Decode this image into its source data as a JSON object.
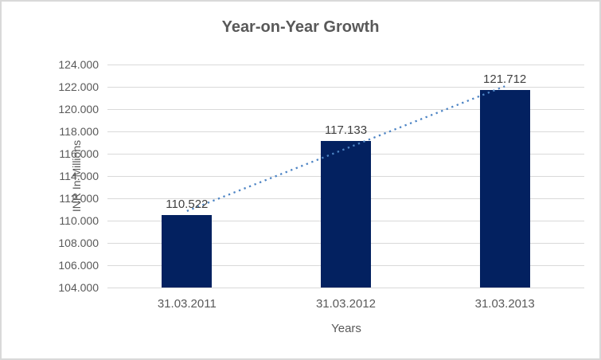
{
  "chart_data": {
    "type": "bar",
    "title": "Year-on-Year Growth",
    "xlabel": "Years",
    "ylabel": "INR In Millions",
    "categories": [
      "31.03.2011",
      "31.03.2012",
      "31.03.2013"
    ],
    "values": [
      110.522,
      117.133,
      121.712
    ],
    "data_labels": [
      "110.522",
      "117.133",
      "121.712"
    ],
    "ylim": [
      104,
      124
    ],
    "ytick_step": 2,
    "ytick_labels": [
      "124.000",
      "122.000",
      "120.000",
      "118.000",
      "116.000",
      "114.000",
      "112.000",
      "110.000",
      "108.000",
      "106.000",
      "104.000"
    ],
    "grid": true,
    "legend": "none",
    "trendline": {
      "style": "dotted",
      "start_value": 110.86,
      "end_value": 122.05
    },
    "colors": {
      "bar": "#032160",
      "trend": "#4D84C4",
      "grid": "#D9D9D9",
      "text": "#595959",
      "data_label": "#404040",
      "border": "#D9D9D9",
      "background": "#FFFFFF"
    }
  }
}
